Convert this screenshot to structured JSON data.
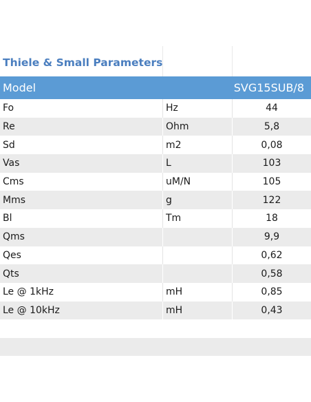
{
  "title": "Thiele & Small Parameters",
  "header": {
    "label": "Model",
    "unit": "",
    "value": "SVG15SUB/8"
  },
  "rows": [
    {
      "param": "Fo",
      "unit": "Hz",
      "value": "44"
    },
    {
      "param": "Re",
      "unit": "Ohm",
      "value": "5,8"
    },
    {
      "param": "Sd",
      "unit": "m2",
      "value": "0,08"
    },
    {
      "param": "Vas",
      "unit": "L",
      "value": "103"
    },
    {
      "param": "Cms",
      "unit": "uM/N",
      "value": "105"
    },
    {
      "param": "Mms",
      "unit": "g",
      "value": "122"
    },
    {
      "param": "Bl",
      "unit": "Tm",
      "value": "18"
    },
    {
      "param": "Qms",
      "unit": "",
      "value": "9,9"
    },
    {
      "param": "Qes",
      "unit": "",
      "value": "0,62"
    },
    {
      "param": "Qts",
      "unit": "",
      "value": "0,58"
    },
    {
      "param": "Le @ 1kHz",
      "unit": "mH",
      "value": "0,85"
    },
    {
      "param": "Le @ 10kHz",
      "unit": "mH",
      "value": "0,43"
    }
  ],
  "colors": {
    "title": "#4a7ebf",
    "header_bg": "#5b9bd5",
    "stripe": "#ebebeb"
  }
}
